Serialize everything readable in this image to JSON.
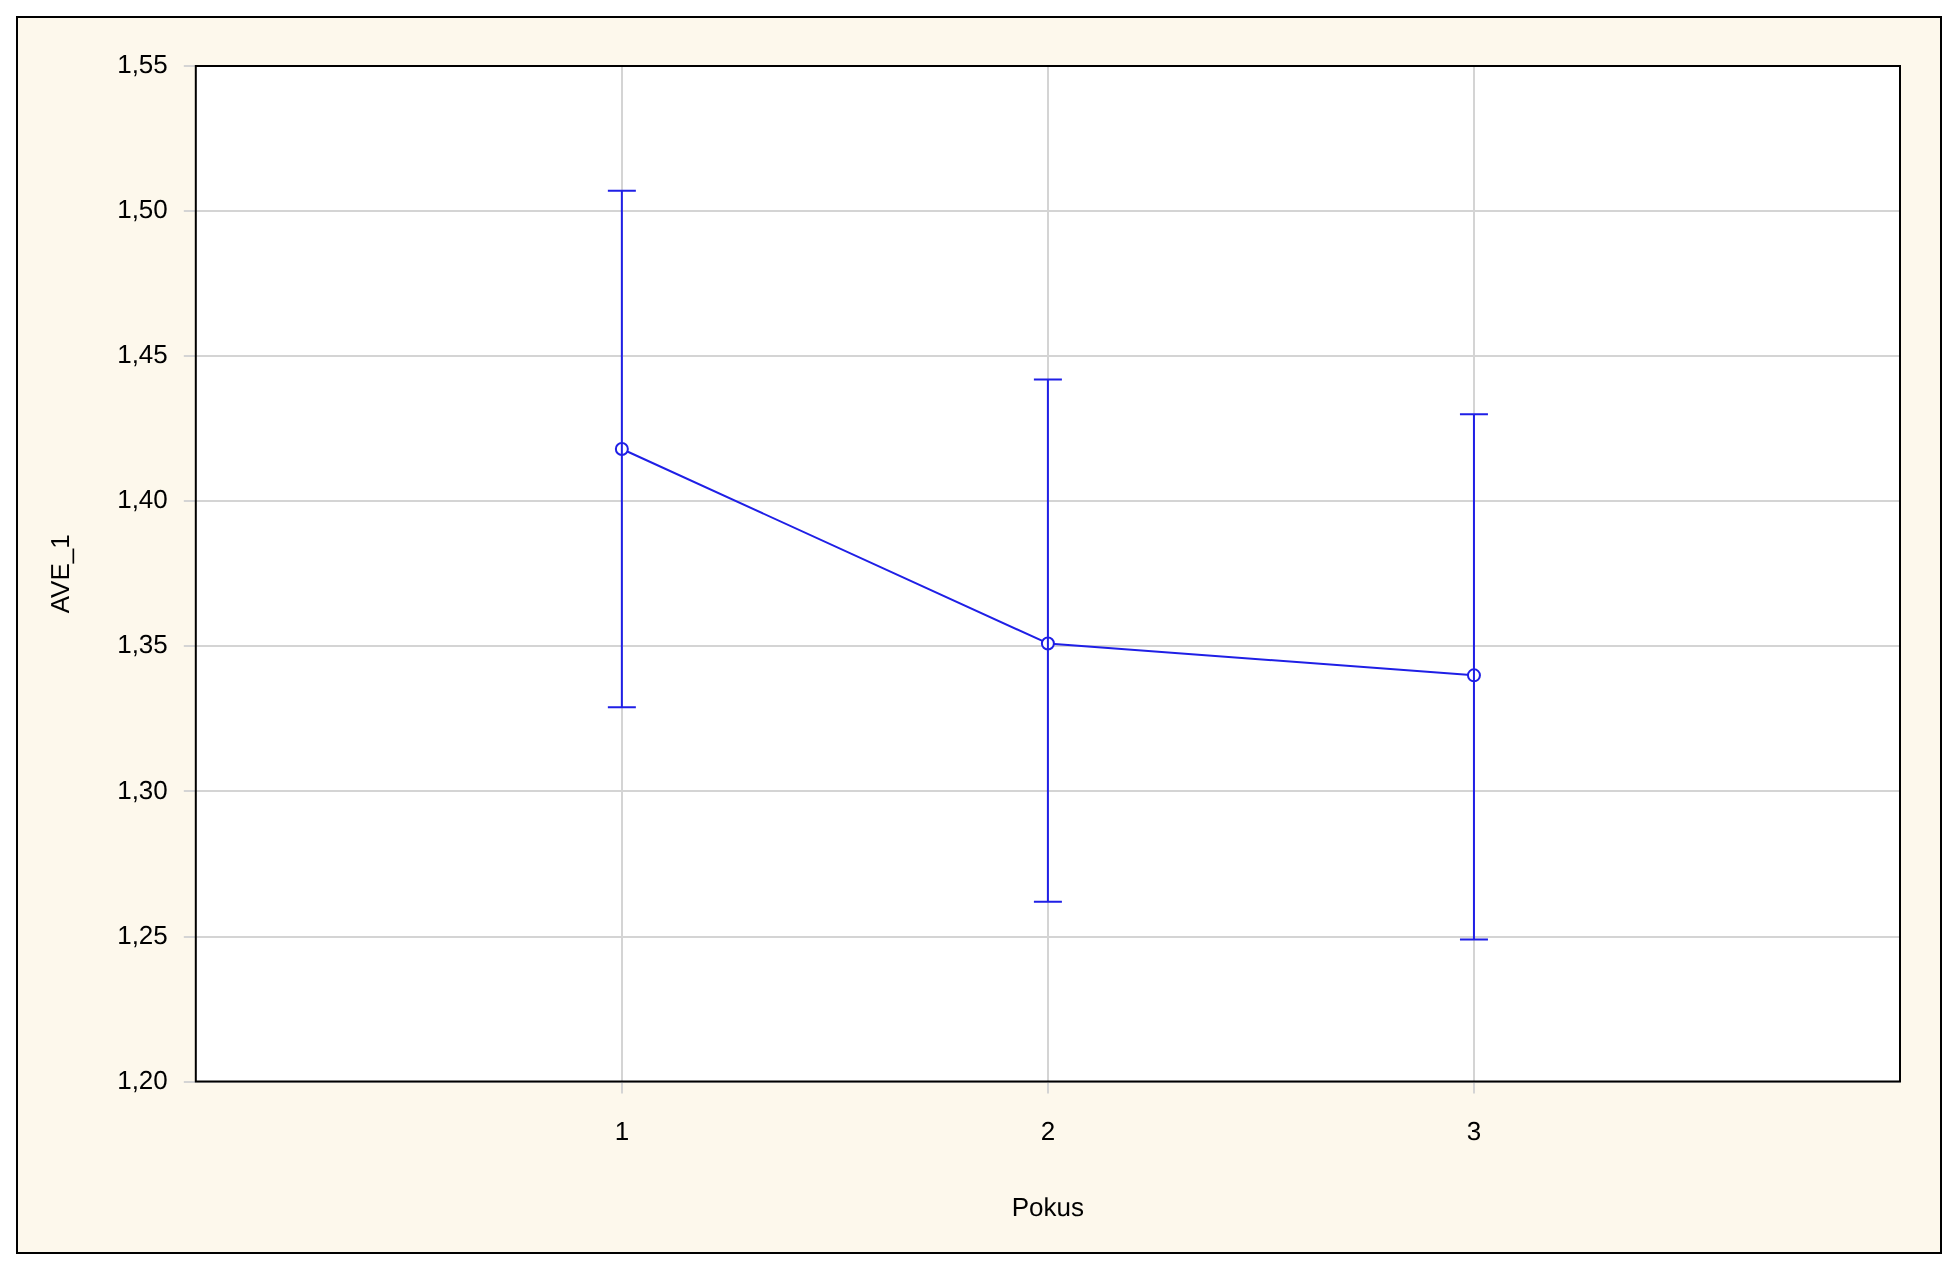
{
  "chart_data": {
    "type": "line",
    "xlabel": "Pokus",
    "ylabel": "AVE_1",
    "x": [
      1,
      2,
      3
    ],
    "series": [
      {
        "color": "#1f1fe6",
        "values": [
          1.418,
          1.351,
          1.34
        ],
        "errors": [
          [
            1.329,
            1.507
          ],
          [
            1.262,
            1.442
          ],
          [
            1.249,
            1.43
          ]
        ]
      }
    ],
    "xlim": [
      0,
      4
    ],
    "xticks": [
      1,
      2,
      3
    ],
    "ylim": [
      1.2,
      1.55
    ],
    "yticks": [
      {
        "value": 1.2,
        "label": "1,20"
      },
      {
        "value": 1.25,
        "label": "1,25"
      },
      {
        "value": 1.3,
        "label": "1,30"
      },
      {
        "value": 1.35,
        "label": "1,35"
      },
      {
        "value": 1.4,
        "label": "1,40"
      },
      {
        "value": 1.45,
        "label": "1,45"
      },
      {
        "value": 1.5,
        "label": "1,50"
      },
      {
        "value": 1.55,
        "label": "1,55"
      }
    ],
    "grid": true,
    "marker": "circle",
    "line_style": "solid",
    "legend": false
  }
}
